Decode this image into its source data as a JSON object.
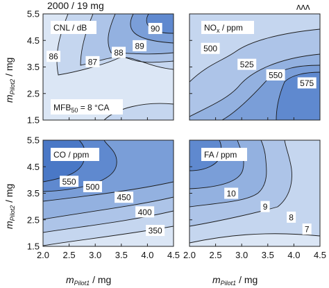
{
  "header": {
    "text": "2000 / 19 mg",
    "logo_glyph": "ʌʌʌ"
  },
  "axes": {
    "x_ticks": [
      "2.0",
      "2.5",
      "3.0",
      "3.5",
      "4.0",
      "4.5"
    ],
    "y_ticks": [
      "1.5",
      "2.5",
      "3.5",
      "4.5",
      "5.5"
    ],
    "xlim": [
      2.0,
      4.5
    ],
    "ylim": [
      1.5,
      5.5
    ],
    "xlabel_main": "m",
    "xlabel_sub": "Pilot1",
    "xlabel_unit": " / mg",
    "ylabel_main": "m",
    "ylabel_sub": "Pilot2",
    "ylabel_unit": " / mg"
  },
  "colors": {
    "level_fills": [
      "#dbe6f5",
      "#c5d6ef",
      "#adc4e8",
      "#93b1e0",
      "#7a9ed8",
      "#5f89cf",
      "#4a78c6"
    ],
    "line": "#1a1a1a",
    "frame": "#222222"
  },
  "chart_data": [
    {
      "type": "heatmap",
      "subtype": "contour",
      "title_main": "CNL / dB",
      "title_sub": "",
      "title_rest": "",
      "levels": [
        86,
        87,
        88,
        89,
        90
      ],
      "label_values": [
        {
          "text": "86",
          "x": 2.2,
          "y": 3.9
        },
        {
          "text": "87",
          "x": 2.95,
          "y": 3.7
        },
        {
          "text": "88",
          "x": 3.45,
          "y": 4.05
        },
        {
          "text": "89",
          "x": 3.85,
          "y": 4.3
        },
        {
          "text": "90",
          "x": 4.15,
          "y": 4.95
        }
      ],
      "annotation": {
        "main": "MFB",
        "sub": "50",
        "rest": " = 8 °CA",
        "x": 2.8,
        "y": 2.05
      }
    },
    {
      "type": "heatmap",
      "subtype": "contour",
      "title_main": "NO",
      "title_sub": "x",
      "title_rest": " / ppm",
      "levels": [
        500,
        525,
        550,
        575
      ],
      "label_values": [
        {
          "text": "500",
          "x": 2.4,
          "y": 4.2
        },
        {
          "text": "525",
          "x": 3.1,
          "y": 3.6
        },
        {
          "text": "550",
          "x": 3.65,
          "y": 3.2
        },
        {
          "text": "575",
          "x": 4.25,
          "y": 2.9
        }
      ]
    },
    {
      "type": "heatmap",
      "subtype": "contour",
      "title_main": "CO / ppm",
      "title_sub": "",
      "title_rest": "",
      "levels": [
        350,
        400,
        450,
        500,
        550
      ],
      "label_values": [
        {
          "text": "550",
          "x": 2.5,
          "y": 3.95
        },
        {
          "text": "500",
          "x": 2.95,
          "y": 3.75
        },
        {
          "text": "450",
          "x": 3.55,
          "y": 3.35
        },
        {
          "text": "400",
          "x": 3.95,
          "y": 2.8
        },
        {
          "text": "350",
          "x": 4.15,
          "y": 2.1
        }
      ]
    },
    {
      "type": "heatmap",
      "subtype": "contour",
      "title_main": "FA / ppm",
      "title_sub": "",
      "title_rest": "",
      "levels": [
        7,
        8,
        9,
        10
      ],
      "label_values": [
        {
          "text": "10",
          "x": 2.8,
          "y": 3.5
        },
        {
          "text": "9",
          "x": 3.45,
          "y": 3.0
        },
        {
          "text": "8",
          "x": 3.95,
          "y": 2.6
        },
        {
          "text": "7",
          "x": 4.25,
          "y": 2.15
        }
      ]
    }
  ]
}
